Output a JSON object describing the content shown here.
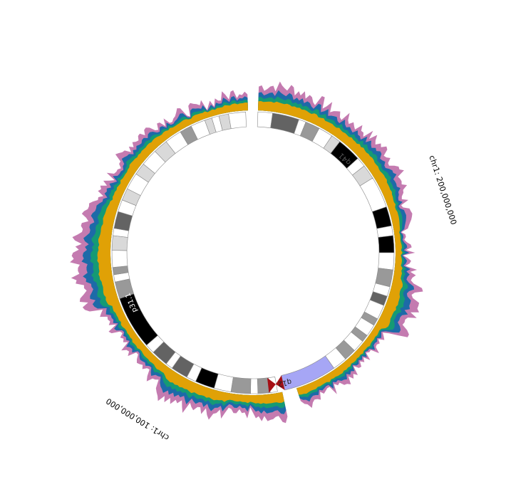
{
  "figure": {
    "chromosome": "chr1",
    "coordinate_labels": [
      {
        "id": "coord-200m",
        "text": "chr1: 200,000,000",
        "position_bp": 200000000
      },
      {
        "id": "coord-100m",
        "text": "chr1: 100,000,000",
        "position_bp": 100000000
      }
    ],
    "band_labels": [
      {
        "id": "band-label-q41",
        "text": "q41"
      },
      {
        "id": "band-label-q12",
        "text": "q12"
      },
      {
        "id": "band-label-p31-1",
        "text": "p31.1"
      }
    ],
    "layer_colors": {
      "outer": "#c47bb0",
      "second": "#1d6aa8",
      "third": "#159a74",
      "inner": "#e0a106"
    },
    "stain_colors": {
      "gneg": "#ffffff",
      "gpos25": "#d9d9d9",
      "gpos50": "#999999",
      "gpos75": "#636363",
      "gpos100": "#000000",
      "gvar": "#a6a6f5",
      "acen": "#a50f15"
    }
  }
}
